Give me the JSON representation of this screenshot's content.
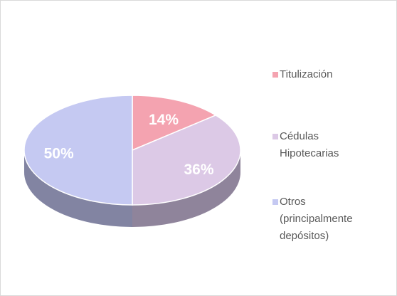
{
  "chart_data": {
    "type": "pie3d",
    "categories": [
      "Titulización",
      "Cédulas Hipotecarias",
      "Otros (principalmente depósitos)"
    ],
    "values": [
      14,
      36,
      50
    ],
    "value_labels": [
      "14%",
      "36%",
      "50%"
    ],
    "colors": [
      "#f4a3b0",
      "#dcc9e6",
      "#c5c9f2"
    ]
  }
}
